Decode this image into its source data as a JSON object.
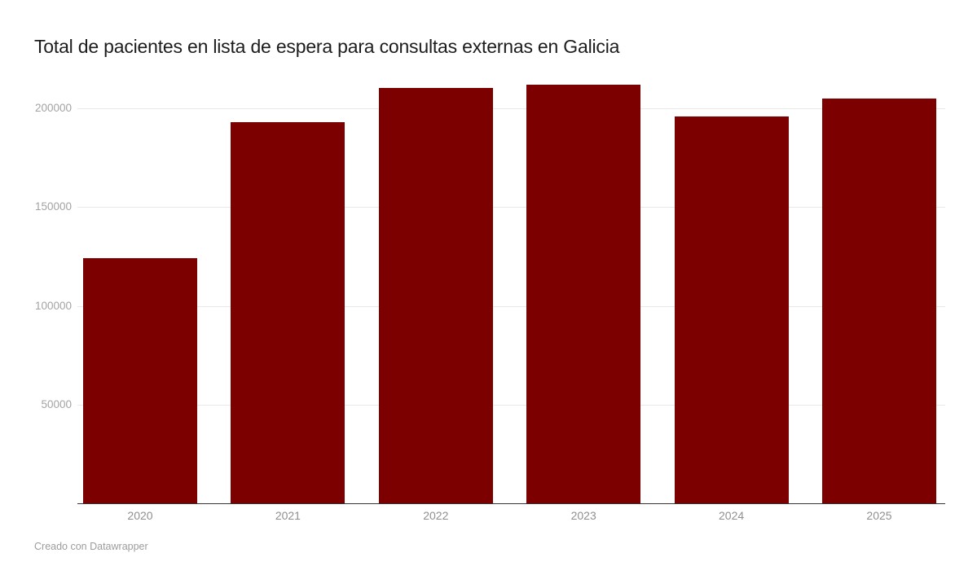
{
  "header": {
    "title": "Total de pacientes en lista de espera para consultas externas en Galicia"
  },
  "footer": {
    "attribution": "Creado con Datawrapper"
  },
  "colors": {
    "bar": "#7d0000",
    "grid": "#e9e9e9",
    "axis": "#333333",
    "y_tick_label": "#a3a3a3",
    "x_tick_label": "#8f8f8f",
    "title": "#1d1d1d",
    "background": "#ffffff"
  },
  "chart_data": {
    "type": "bar",
    "title": "Total de pacientes en lista de espera para consultas externas en Galicia",
    "categories": [
      "2020",
      "2021",
      "2022",
      "2023",
      "2024",
      "2025"
    ],
    "values": [
      124000,
      193000,
      210400,
      212000,
      196000,
      205000
    ],
    "xlabel": "",
    "ylabel": "",
    "ylim": [
      0,
      215000
    ],
    "yticks": [
      50000,
      100000,
      150000,
      200000
    ],
    "ytick_labels": [
      "50000",
      "100000",
      "150000",
      "200000"
    ],
    "grid": "horizontal",
    "legend": "none",
    "bar_color": "#7d0000",
    "attribution": "Creado con Datawrapper"
  }
}
